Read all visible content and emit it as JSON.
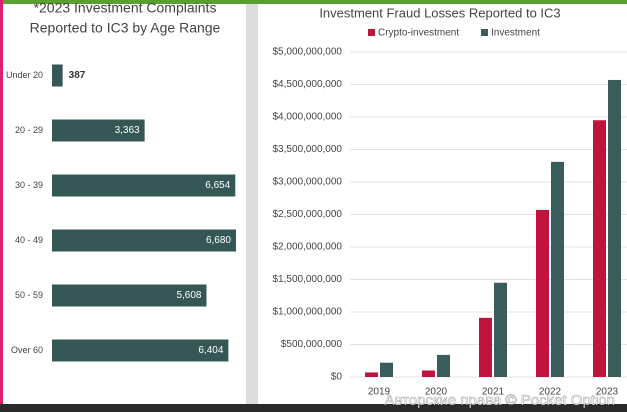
{
  "chart_data": [
    {
      "type": "hbar",
      "title_lines": [
        "*2023 Investment Complaints",
        "Reported to IC3 by Age Range"
      ],
      "categories": [
        "Under 20",
        "20 - 29",
        "30 - 39",
        "40 - 49",
        "50 - 59",
        "Over 60"
      ],
      "values": [
        387,
        3363,
        6654,
        6680,
        5608,
        6404
      ],
      "value_labels": [
        "387",
        "3,363",
        "6,654",
        "6,680",
        "5,608",
        "6,404"
      ],
      "color": "#355755"
    },
    {
      "type": "grouped_bar",
      "title": "Investment Fraud Losses Reported to IC3",
      "categories": [
        "2019",
        "2020",
        "2021",
        "2022",
        "2023"
      ],
      "series": [
        {
          "name": "Crypto-investment",
          "color": "#c0143c",
          "values": [
            70000000,
            100000000,
            910000000,
            2570000000,
            3950000000
          ]
        },
        {
          "name": "Investment",
          "color": "#3a5c5a",
          "values": [
            220000000,
            340000000,
            1450000000,
            3310000000,
            4570000000
          ]
        }
      ],
      "ylim": [
        0,
        5000000000
      ],
      "yticks": [
        {
          "value": 0,
          "label": "$0"
        },
        {
          "value": 500000000,
          "label": "$500,000,000"
        },
        {
          "value": 1000000000,
          "label": "$1,000,000,000"
        },
        {
          "value": 1500000000,
          "label": "$1,500,000,000"
        },
        {
          "value": 2000000000,
          "label": "$2,000,000,000"
        },
        {
          "value": 2500000000,
          "label": "$2,500,000,000"
        },
        {
          "value": 3000000000,
          "label": "$3,000,000,000"
        },
        {
          "value": 3500000000,
          "label": "$3,500,000,000"
        },
        {
          "value": 4000000000,
          "label": "$4,000,000,000"
        },
        {
          "value": 4500000000,
          "label": "$4,500,000,000"
        },
        {
          "value": 5000000000,
          "label": "$5,000,000,000"
        }
      ],
      "grid": true,
      "legend": "top"
    }
  ],
  "watermark": "Авторские права © Pocket Option"
}
